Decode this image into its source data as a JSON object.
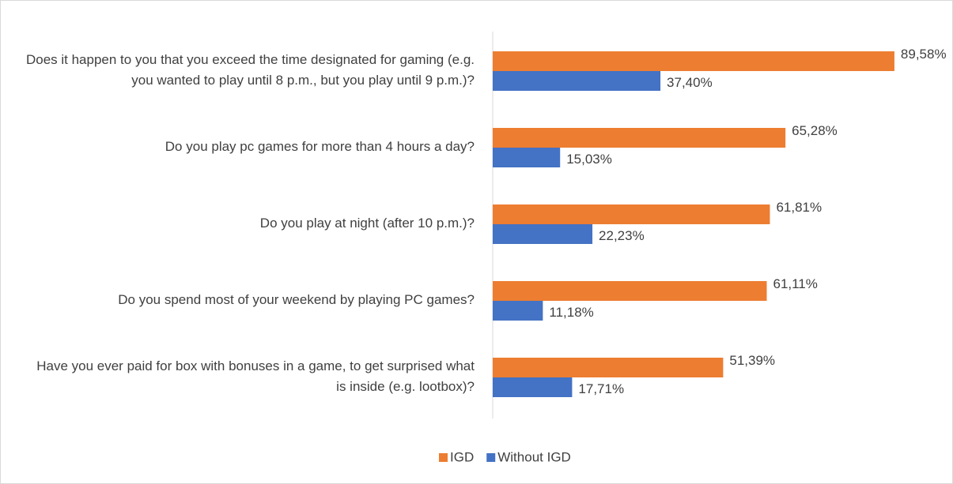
{
  "chart_data": {
    "type": "bar",
    "orientation": "horizontal",
    "categories": [
      "Does it happen to you that you exceed the time designated for gaming (e.g. you wanted to play until 8 p.m., but you play until 9 p.m.)?",
      "Do you play pc games for more than 4 hours a day?",
      "Do you play at night (after 10 p.m.)?",
      "Do you spend most of your weekend by playing PC games?",
      "Have you ever paid for box with bonuses in a game, to get surprised what is inside (e.g. lootbox)?"
    ],
    "series": [
      {
        "name": "IGD",
        "color": "#ED7D31",
        "values": [
          89.58,
          65.28,
          61.81,
          61.11,
          51.39
        ],
        "value_labels": [
          "89,58%",
          "65,28%",
          "61,81%",
          "61,11%",
          "51,39%"
        ]
      },
      {
        "name": "Without IGD",
        "color": "#4472C4",
        "values": [
          37.4,
          15.03,
          22.23,
          11.18,
          17.71
        ],
        "value_labels": [
          "37,40%",
          "15,03%",
          "22,23%",
          "11,18%",
          "17,71%"
        ]
      }
    ],
    "legend": "bottom"
  }
}
